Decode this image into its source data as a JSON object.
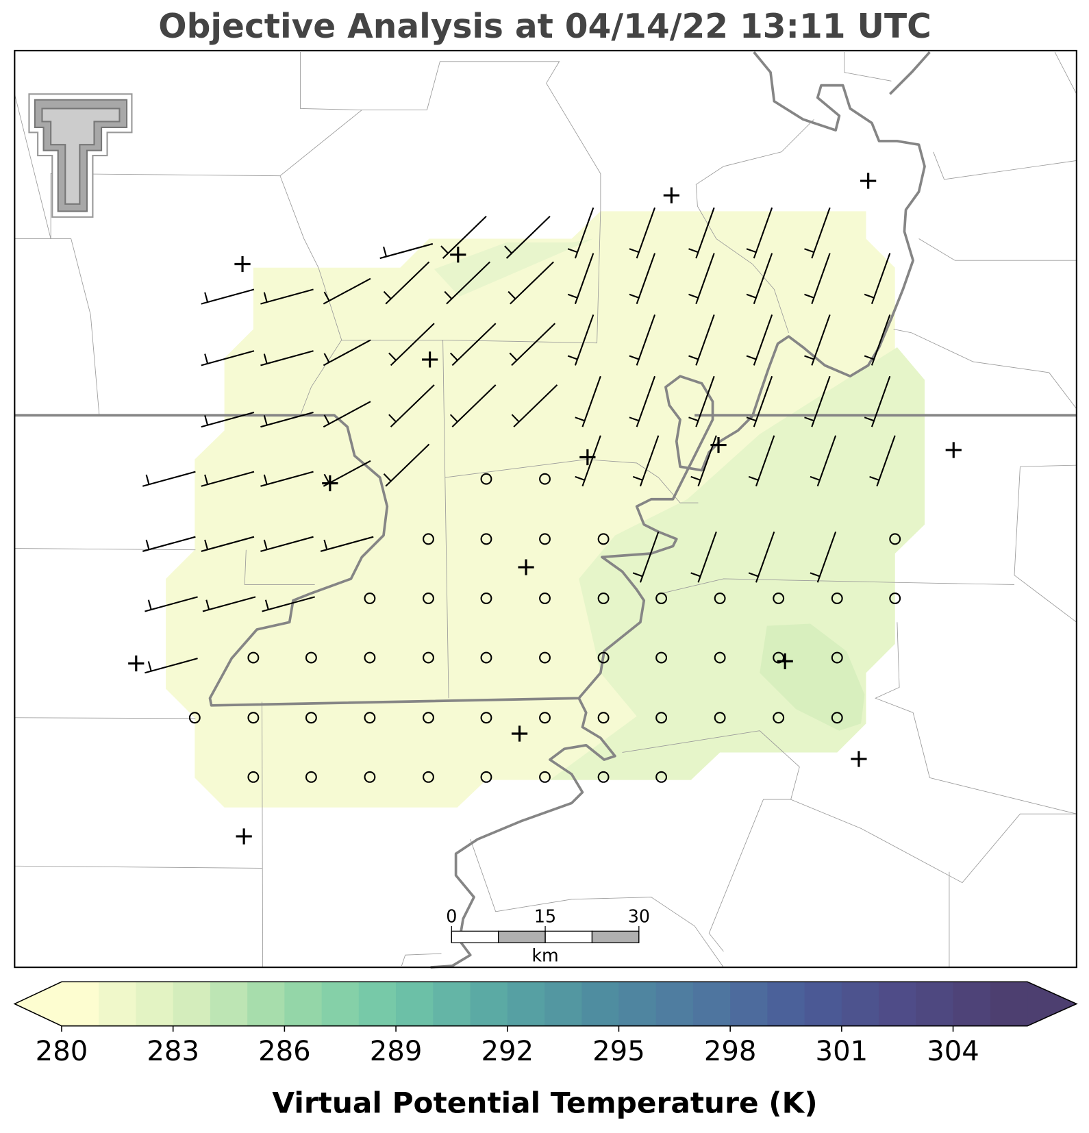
{
  "title": "Objective Analysis at 04/14/22 13:11 UTC",
  "colorbar": {
    "label": "Virtual Potential Temperature (K)",
    "range": [
      280,
      306
    ],
    "ticks": [
      280,
      283,
      286,
      289,
      292,
      295,
      298,
      301,
      304
    ],
    "colormap": [
      "#fdfdd0",
      "#d9efbe",
      "#9ad9a8",
      "#72c7a8",
      "#5aa9a4",
      "#4f8ea0",
      "#4f78a0",
      "#4a5d99",
      "#4f4b86",
      "#4d3f70"
    ]
  },
  "scale_bar": {
    "ticks": [
      0,
      15,
      30
    ],
    "unit": "km"
  }
}
